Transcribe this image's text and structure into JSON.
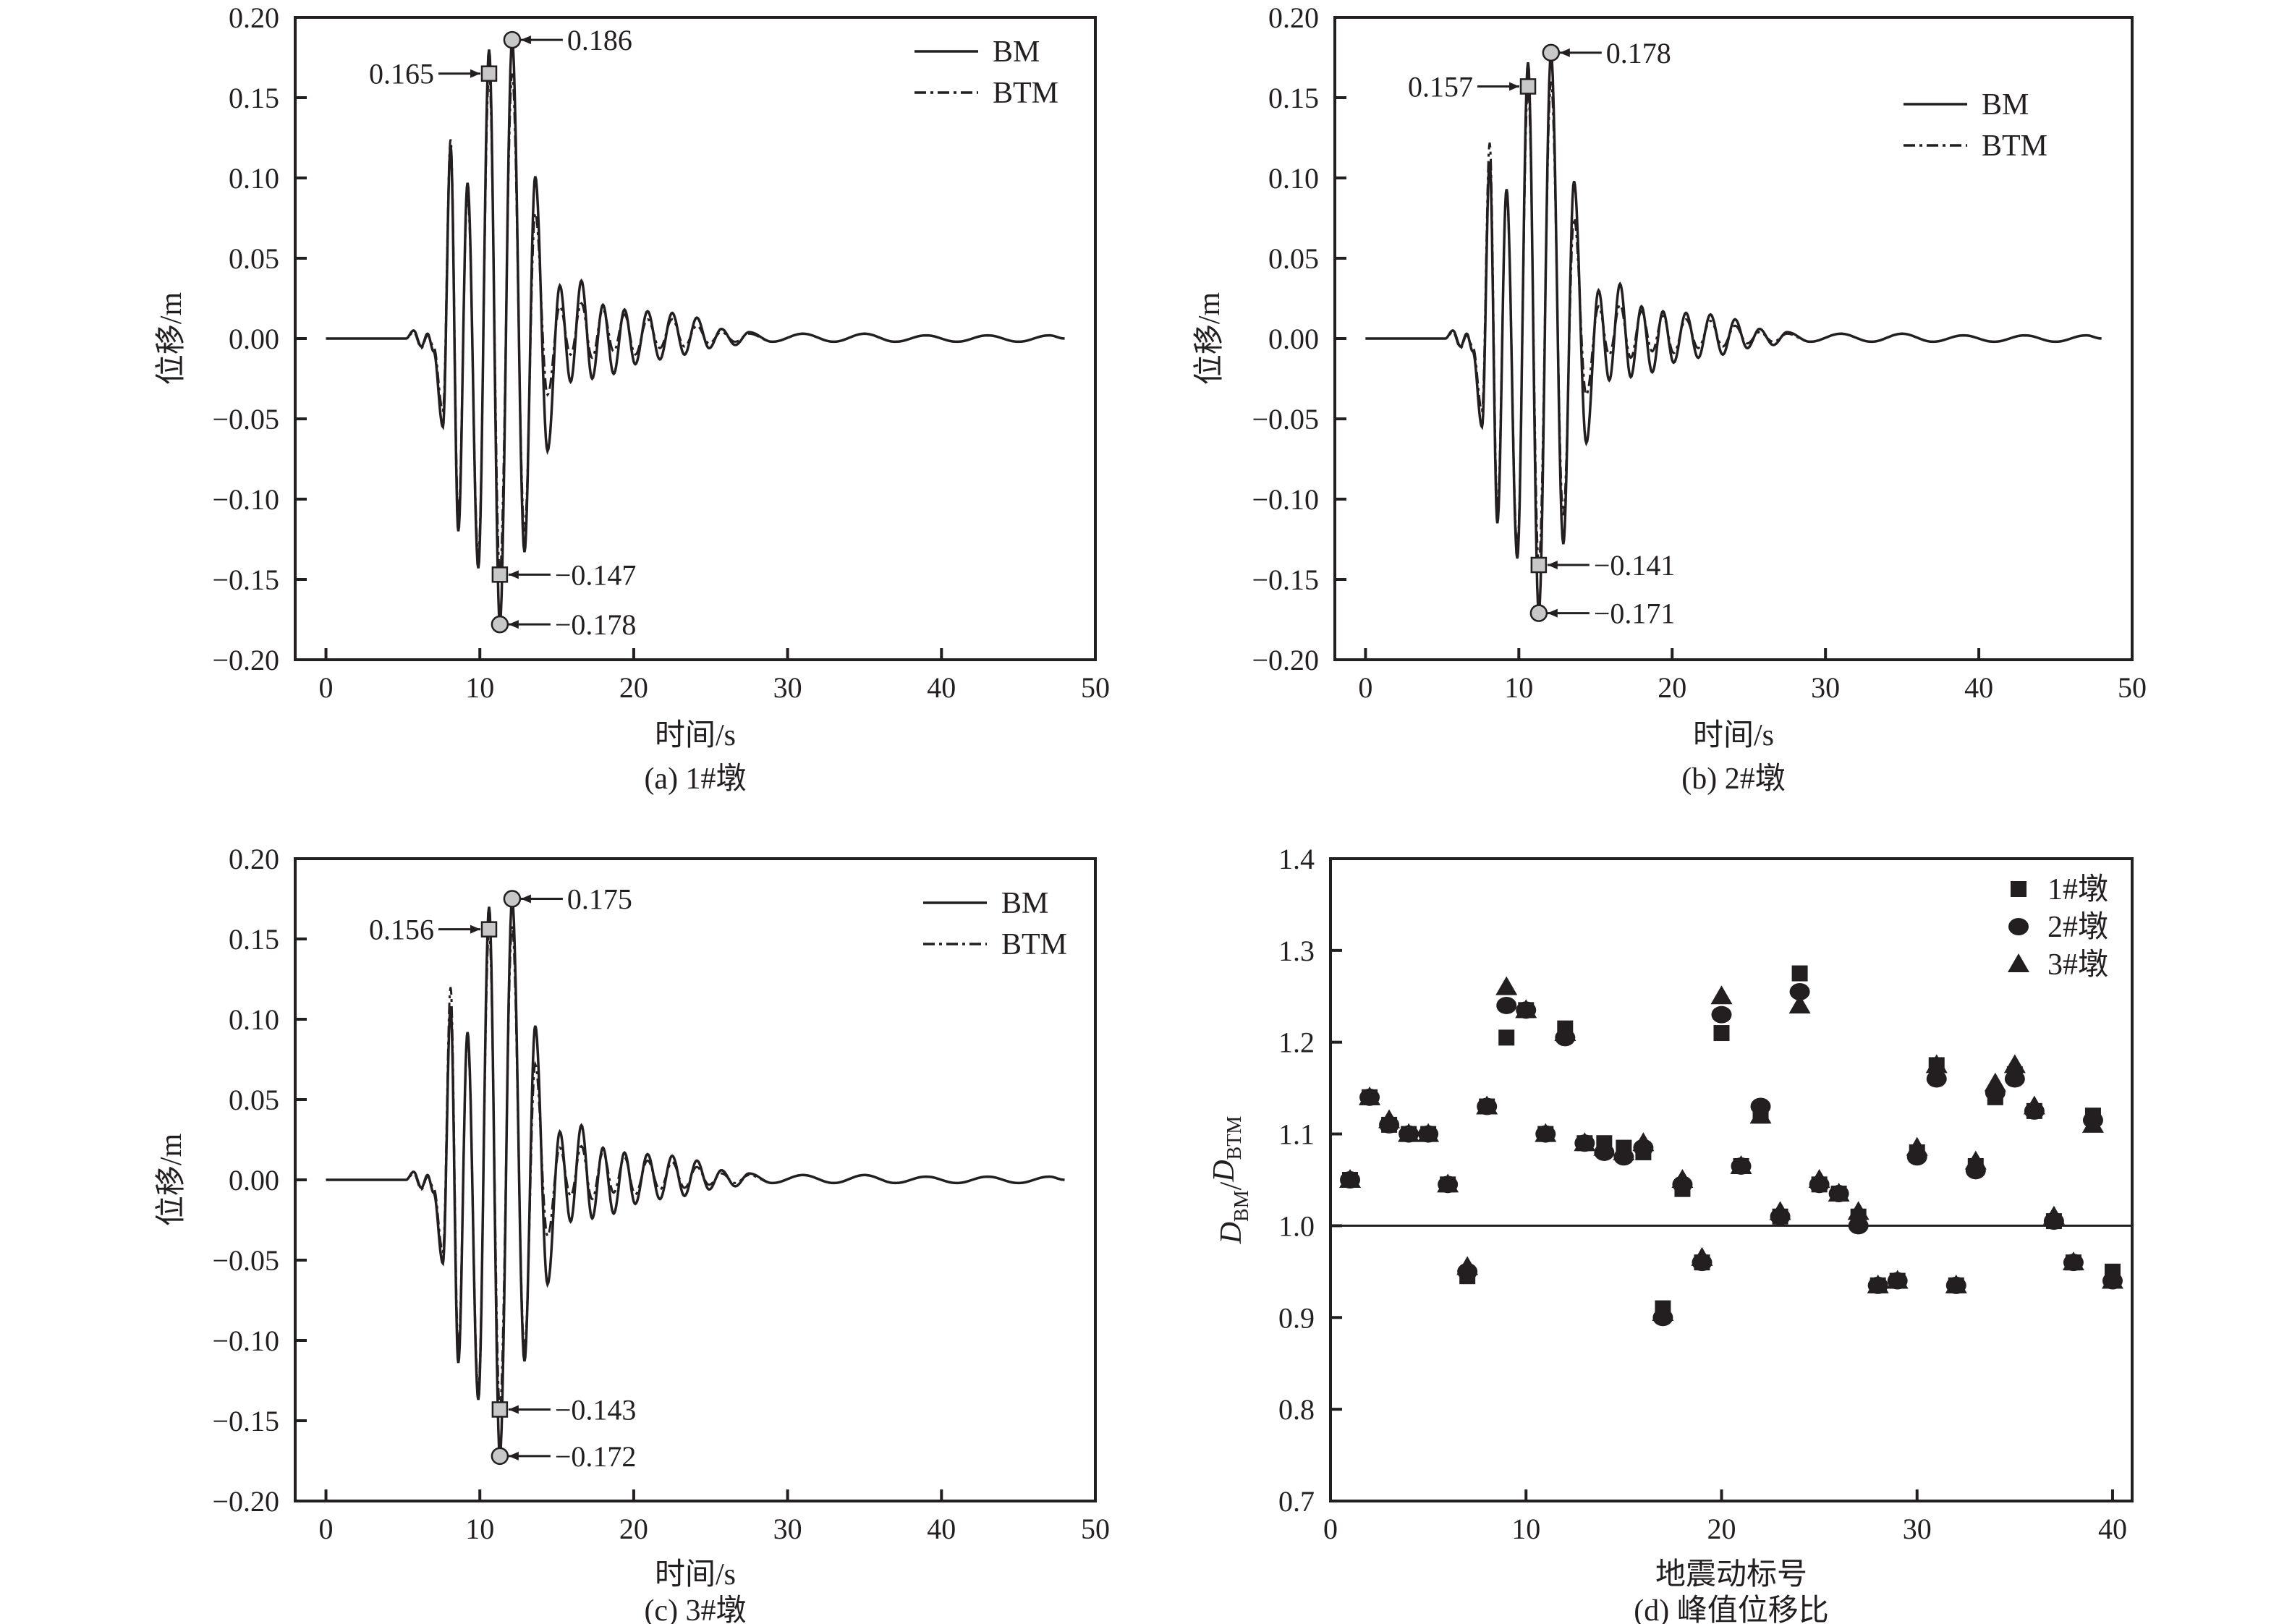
{
  "chart_data": [
    {
      "type": "line",
      "title": "(a) 1#墩",
      "xlabel": "时间/s",
      "ylabel": "位移/m",
      "xlim": [
        -2,
        50
      ],
      "ylim": [
        -0.2,
        0.2
      ],
      "xticks": [
        0,
        10,
        20,
        30,
        40,
        50
      ],
      "yticks": [
        0.2,
        0.15,
        0.1,
        0.05,
        0,
        -0.05,
        -0.1,
        -0.15,
        -0.2
      ],
      "legend": [
        "BM",
        "BTM"
      ],
      "legend_position": "top-right",
      "t": [
        0,
        5.2,
        5.7,
        6.2,
        6.6,
        7.0,
        7.6,
        8.1,
        8.6,
        9.2,
        9.9,
        10.6,
        11.3,
        12.1,
        12.9,
        13.6,
        14.4,
        15.2,
        15.9,
        16.6,
        17.3,
        18.0,
        18.7,
        19.4,
        20.1,
        20.9,
        21.7,
        22.5,
        23.3,
        24.1,
        24.9,
        25.7,
        26.6,
        27.5,
        29,
        31,
        33,
        35,
        37,
        39,
        41,
        43,
        45,
        47,
        48
      ],
      "series": [
        {
          "name": "BM",
          "values": [
            0,
            0,
            0.005,
            -0.005,
            0.003,
            -0.008,
            -0.055,
            0.12,
            -0.12,
            0.097,
            -0.143,
            0.18,
            -0.178,
            0.186,
            -0.133,
            0.101,
            -0.07,
            0.033,
            -0.027,
            0.036,
            -0.025,
            0.021,
            -0.022,
            0.018,
            -0.016,
            0.017,
            -0.013,
            0.016,
            -0.01,
            0.013,
            -0.006,
            0.006,
            -0.004,
            0.004,
            -0.002,
            0.003,
            -0.002,
            0.003,
            -0.002,
            0.002,
            -0.002,
            0.002,
            -0.002,
            0.002,
            0
          ]
        },
        {
          "name": "BTM",
          "values": [
            0,
            0,
            0.004,
            -0.006,
            0.002,
            -0.005,
            -0.045,
            0.124,
            -0.11,
            0.09,
            -0.135,
            0.165,
            -0.147,
            0.165,
            -0.12,
            0.078,
            -0.035,
            0.02,
            -0.01,
            0.022,
            -0.012,
            0.018,
            -0.008,
            0.015,
            -0.01,
            0.012,
            -0.006,
            0.012,
            -0.005,
            0.008,
            -0.003,
            0.004,
            -0.002,
            0.003,
            -0.002,
            0.003,
            -0.002,
            0.003,
            -0.002,
            0.002,
            -0.002,
            0.002,
            -0.002,
            0.002,
            0
          ]
        }
      ],
      "annotations": [
        {
          "series": "BTM",
          "kind": "max",
          "t": 10.6,
          "value": 0.165,
          "label": "0.165"
        },
        {
          "series": "BM",
          "kind": "max",
          "t": 12.1,
          "value": 0.186,
          "label": "0.186"
        },
        {
          "series": "BTM",
          "kind": "min",
          "t": 11.3,
          "value": -0.147,
          "label": "−0.147"
        },
        {
          "series": "BM",
          "kind": "min",
          "t": 11.3,
          "value": -0.178,
          "label": "−0.178"
        }
      ]
    },
    {
      "type": "line",
      "title": "(b) 2#墩",
      "xlabel": "时间/s",
      "ylabel": "位移/m",
      "xlim": [
        -2,
        50
      ],
      "ylim": [
        -0.2,
        0.2
      ],
      "xticks": [
        0,
        10,
        20,
        30,
        40,
        50
      ],
      "yticks": [
        0.2,
        0.15,
        0.1,
        0.05,
        0,
        -0.05,
        -0.1,
        -0.15,
        -0.2
      ],
      "legend": [
        "BM",
        "BTM"
      ],
      "legend_position": "top-right",
      "t": [
        0,
        5.2,
        5.7,
        6.2,
        6.6,
        7.0,
        7.6,
        8.1,
        8.6,
        9.2,
        9.9,
        10.6,
        11.3,
        12.1,
        12.9,
        13.6,
        14.4,
        15.2,
        15.9,
        16.6,
        17.3,
        18.0,
        18.7,
        19.4,
        20.1,
        20.9,
        21.7,
        22.5,
        23.3,
        24.1,
        24.9,
        25.7,
        26.6,
        27.5,
        29,
        31,
        33,
        35,
        37,
        39,
        41,
        43,
        45,
        47,
        48
      ],
      "series": [
        {
          "name": "BM",
          "values": [
            0,
            0,
            0.005,
            -0.005,
            0.003,
            -0.008,
            -0.055,
            0.11,
            -0.115,
            0.093,
            -0.137,
            0.172,
            -0.171,
            0.178,
            -0.128,
            0.098,
            -0.065,
            0.03,
            -0.026,
            0.034,
            -0.024,
            0.02,
            -0.021,
            0.017,
            -0.015,
            0.016,
            -0.012,
            0.015,
            -0.01,
            0.012,
            -0.006,
            0.006,
            -0.004,
            0.004,
            -0.002,
            0.003,
            -0.002,
            0.003,
            -0.002,
            0.002,
            -0.002,
            0.002,
            -0.002,
            0.002,
            0
          ]
        },
        {
          "name": "BTM",
          "values": [
            0,
            0,
            0.004,
            -0.006,
            0.002,
            -0.005,
            -0.045,
            0.122,
            -0.105,
            0.09,
            -0.13,
            0.157,
            -0.141,
            0.16,
            -0.11,
            0.075,
            -0.035,
            0.02,
            -0.01,
            0.021,
            -0.012,
            0.017,
            -0.008,
            0.014,
            -0.009,
            0.012,
            -0.006,
            0.011,
            -0.005,
            0.008,
            -0.003,
            0.004,
            -0.002,
            0.003,
            -0.002,
            0.003,
            -0.002,
            0.003,
            -0.002,
            0.002,
            -0.002,
            0.002,
            -0.002,
            0.002,
            0
          ]
        }
      ],
      "annotations": [
        {
          "series": "BTM",
          "kind": "max",
          "t": 10.6,
          "value": 0.157,
          "label": "0.157"
        },
        {
          "series": "BM",
          "kind": "max",
          "t": 12.1,
          "value": 0.178,
          "label": "0.178"
        },
        {
          "series": "BTM",
          "kind": "min",
          "t": 11.3,
          "value": -0.141,
          "label": "−0.141"
        },
        {
          "series": "BM",
          "kind": "min",
          "t": 11.3,
          "value": -0.171,
          "label": "−0.171"
        }
      ]
    },
    {
      "type": "line",
      "title": "(c) 3#墩",
      "xlabel": "时间/s",
      "ylabel": "位移/m",
      "xlim": [
        -2,
        50
      ],
      "ylim": [
        -0.2,
        0.2
      ],
      "xticks": [
        0,
        10,
        20,
        30,
        40,
        50
      ],
      "yticks": [
        0.2,
        0.15,
        0.1,
        0.05,
        0,
        -0.05,
        -0.1,
        -0.15,
        -0.2
      ],
      "legend": [
        "BM",
        "BTM"
      ],
      "legend_position": "top-right",
      "t": [
        0,
        5.2,
        5.7,
        6.2,
        6.6,
        7.0,
        7.6,
        8.1,
        8.6,
        9.2,
        9.9,
        10.6,
        11.3,
        12.1,
        12.9,
        13.6,
        14.4,
        15.2,
        15.9,
        16.6,
        17.3,
        18.0,
        18.7,
        19.4,
        20.1,
        20.9,
        21.7,
        22.5,
        23.3,
        24.1,
        24.9,
        25.7,
        26.6,
        27.5,
        29,
        31,
        33,
        35,
        37,
        39,
        41,
        43,
        45,
        47,
        48
      ],
      "series": [
        {
          "name": "BM",
          "values": [
            0,
            0,
            0.005,
            -0.005,
            0.003,
            -0.008,
            -0.052,
            0.108,
            -0.114,
            0.092,
            -0.137,
            0.17,
            -0.172,
            0.175,
            -0.113,
            0.096,
            -0.065,
            0.03,
            -0.026,
            0.034,
            -0.024,
            0.02,
            -0.021,
            0.017,
            -0.015,
            0.016,
            -0.012,
            0.015,
            -0.01,
            0.012,
            -0.006,
            0.006,
            -0.004,
            0.004,
            -0.002,
            0.003,
            -0.002,
            0.003,
            -0.002,
            0.002,
            -0.002,
            0.002,
            -0.002,
            0.002,
            0
          ]
        },
        {
          "name": "BTM",
          "values": [
            0,
            0,
            0.004,
            -0.006,
            0.002,
            -0.005,
            -0.045,
            0.12,
            -0.105,
            0.088,
            -0.13,
            0.156,
            -0.143,
            0.158,
            -0.105,
            0.072,
            -0.035,
            0.02,
            -0.01,
            0.021,
            -0.012,
            0.017,
            -0.008,
            0.014,
            -0.009,
            0.012,
            -0.006,
            0.011,
            -0.005,
            0.008,
            -0.003,
            0.004,
            -0.002,
            0.003,
            -0.002,
            0.003,
            -0.002,
            0.003,
            -0.002,
            0.002,
            -0.002,
            0.002,
            -0.002,
            0.002,
            0
          ]
        }
      ],
      "annotations": [
        {
          "series": "BTM",
          "kind": "max",
          "t": 10.6,
          "value": 0.156,
          "label": "0.156"
        },
        {
          "series": "BM",
          "kind": "max",
          "t": 12.1,
          "value": 0.175,
          "label": "0.175"
        },
        {
          "series": "BTM",
          "kind": "min",
          "t": 11.3,
          "value": -0.143,
          "label": "−0.143"
        },
        {
          "series": "BM",
          "kind": "min",
          "t": 11.3,
          "value": -0.172,
          "label": "−0.172"
        }
      ]
    },
    {
      "type": "scatter",
      "title": "(d) 峰值位移比",
      "xlabel": "地震动标号",
      "ylabel": {
        "main": "D",
        "sub1": "BM",
        "slash": "/",
        "sub2": "BTM"
      },
      "xlim": [
        0,
        41
      ],
      "ylim": [
        0.7,
        1.4
      ],
      "xticks": [
        0,
        10,
        20,
        30,
        40
      ],
      "yticks": [
        0.7,
        0.8,
        0.9,
        1.0,
        1.1,
        1.2,
        1.3,
        1.4
      ],
      "reference_line": 1.0,
      "legend_position": "top-right",
      "x": [
        1,
        2,
        3,
        4,
        5,
        6,
        7,
        8,
        9,
        10,
        11,
        12,
        13,
        14,
        15,
        16,
        17,
        18,
        19,
        20,
        21,
        22,
        23,
        24,
        25,
        26,
        27,
        28,
        29,
        30,
        31,
        32,
        33,
        34,
        35,
        36,
        37,
        38,
        39,
        40
      ],
      "series": [
        {
          "name": "1#墩",
          "marker": "square",
          "values": [
            1.05,
            1.14,
            1.11,
            1.1,
            1.1,
            1.045,
            0.945,
            1.13,
            1.205,
            1.235,
            1.1,
            1.215,
            1.09,
            1.09,
            1.085,
            1.08,
            0.91,
            1.04,
            0.96,
            1.21,
            1.065,
            1.12,
            1.01,
            1.275,
            1.045,
            1.035,
            1.01,
            0.935,
            0.94,
            1.08,
            1.175,
            0.935,
            1.065,
            1.14,
            1.165,
            1.125,
            1.005,
            0.96,
            1.12,
            0.95
          ]
        },
        {
          "name": "2#墩",
          "marker": "circle",
          "values": [
            1.05,
            1.14,
            1.11,
            1.1,
            1.1,
            1.045,
            0.95,
            1.13,
            1.24,
            1.235,
            1.1,
            1.205,
            1.09,
            1.08,
            1.075,
            1.085,
            0.9,
            1.045,
            0.96,
            1.23,
            1.065,
            1.13,
            1.01,
            1.255,
            1.045,
            1.035,
            1.0,
            0.935,
            0.94,
            1.075,
            1.16,
            0.935,
            1.06,
            1.145,
            1.16,
            1.125,
            1.005,
            0.96,
            1.115,
            0.94
          ]
        },
        {
          "name": "3#墩",
          "marker": "triangle",
          "values": [
            1.05,
            1.14,
            1.115,
            1.1,
            1.1,
            1.045,
            0.955,
            1.13,
            1.26,
            1.235,
            1.1,
            1.21,
            1.09,
            1.085,
            1.08,
            1.09,
            0.905,
            1.05,
            0.965,
            1.25,
            1.065,
            1.12,
            1.015,
            1.24,
            1.05,
            1.035,
            1.015,
            0.935,
            0.94,
            1.085,
            1.175,
            0.935,
            1.07,
            1.155,
            1.175,
            1.13,
            1.01,
            0.96,
            1.11,
            0.94
          ]
        }
      ]
    }
  ]
}
